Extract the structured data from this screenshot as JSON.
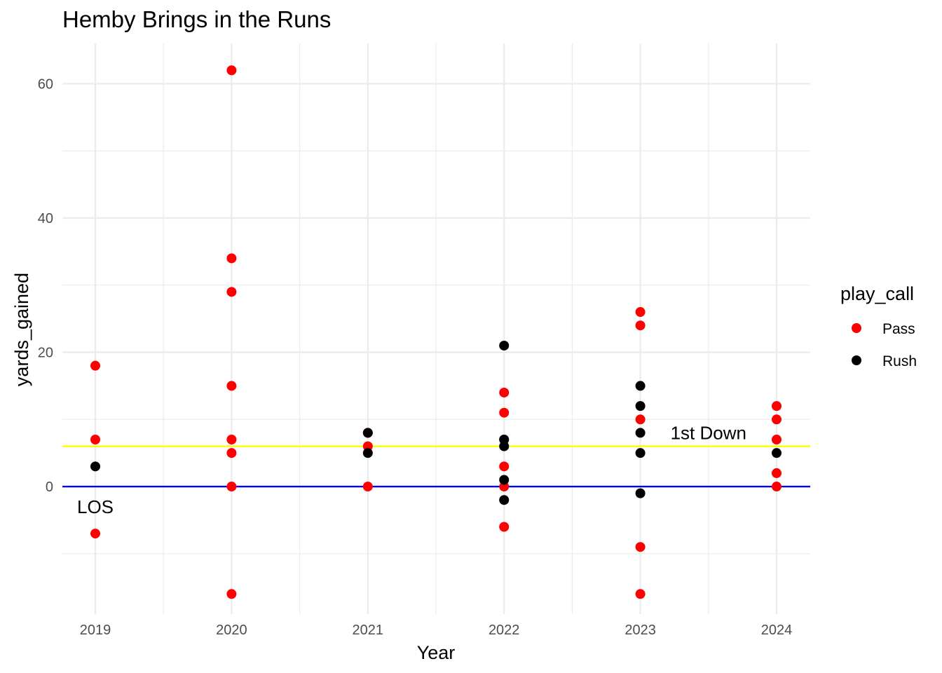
{
  "chart_data": {
    "type": "scatter",
    "title": "Hemby Brings in the Runs",
    "xlabel": "Year",
    "ylabel": "yards_gained",
    "x_categories": [
      "2019",
      "2020",
      "2021",
      "2022",
      "2023",
      "2024"
    ],
    "ylim": [
      -19,
      66
    ],
    "y_ticks": [
      0,
      20,
      40,
      60
    ],
    "grid": true,
    "legend": {
      "title": "play_call",
      "placement": "right",
      "entries": [
        {
          "label": "Pass",
          "color": "#ff0000"
        },
        {
          "label": "Rush",
          "color": "#000000"
        }
      ]
    },
    "series": [
      {
        "name": "Pass",
        "color": "#ff0000",
        "points": [
          {
            "x": "2019",
            "y": 18
          },
          {
            "x": "2019",
            "y": 7
          },
          {
            "x": "2019",
            "y": -7
          },
          {
            "x": "2020",
            "y": 62
          },
          {
            "x": "2020",
            "y": 34
          },
          {
            "x": "2020",
            "y": 29
          },
          {
            "x": "2020",
            "y": 15
          },
          {
            "x": "2020",
            "y": 7
          },
          {
            "x": "2020",
            "y": 5
          },
          {
            "x": "2020",
            "y": 0
          },
          {
            "x": "2020",
            "y": -16
          },
          {
            "x": "2021",
            "y": 8
          },
          {
            "x": "2021",
            "y": 6
          },
          {
            "x": "2021",
            "y": 0
          },
          {
            "x": "2022",
            "y": 14
          },
          {
            "x": "2022",
            "y": 11
          },
          {
            "x": "2022",
            "y": 7
          },
          {
            "x": "2022",
            "y": 3
          },
          {
            "x": "2022",
            "y": 0
          },
          {
            "x": "2022",
            "y": -6
          },
          {
            "x": "2023",
            "y": 26
          },
          {
            "x": "2023",
            "y": 24
          },
          {
            "x": "2023",
            "y": 10
          },
          {
            "x": "2023",
            "y": -9
          },
          {
            "x": "2023",
            "y": -16
          },
          {
            "x": "2024",
            "y": 12
          },
          {
            "x": "2024",
            "y": 10
          },
          {
            "x": "2024",
            "y": 7
          },
          {
            "x": "2024",
            "y": 2
          },
          {
            "x": "2024",
            "y": 0
          }
        ]
      },
      {
        "name": "Rush",
        "color": "#000000",
        "points": [
          {
            "x": "2019",
            "y": 3
          },
          {
            "x": "2021",
            "y": 8
          },
          {
            "x": "2021",
            "y": 5
          },
          {
            "x": "2022",
            "y": 21
          },
          {
            "x": "2022",
            "y": 7
          },
          {
            "x": "2022",
            "y": 6
          },
          {
            "x": "2022",
            "y": 1
          },
          {
            "x": "2022",
            "y": -2
          },
          {
            "x": "2023",
            "y": 15
          },
          {
            "x": "2023",
            "y": 12
          },
          {
            "x": "2023",
            "y": 8
          },
          {
            "x": "2023",
            "y": 5
          },
          {
            "x": "2023",
            "y": -1
          },
          {
            "x": "2024",
            "y": 5
          }
        ]
      }
    ],
    "reference_lines": [
      {
        "name": "line-of-scrimmage",
        "y": 0,
        "color": "#0000ff"
      },
      {
        "name": "first-down",
        "y": 6,
        "color": "#ffff00"
      }
    ],
    "annotations": [
      {
        "text": "LOS",
        "x": "2019",
        "y": -3
      },
      {
        "text": "1st Down",
        "x": "2023.5",
        "y": 8
      }
    ]
  }
}
